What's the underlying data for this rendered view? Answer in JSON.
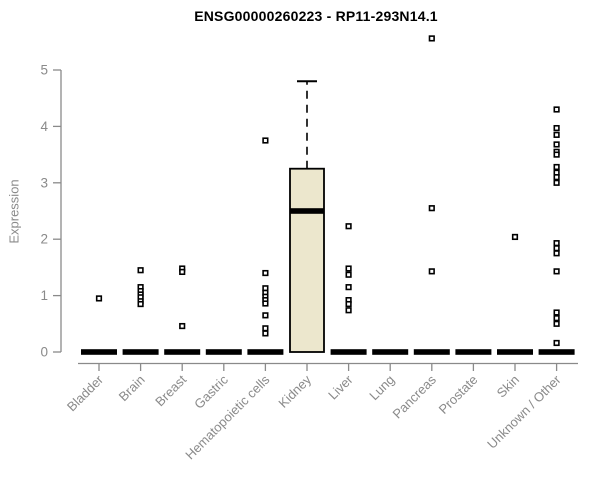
{
  "chart_data": {
    "type": "box",
    "title": "ENSG00000260223 - RP11-293N14.1",
    "xlabel": "",
    "ylabel": "Expression",
    "ylim": [
      0,
      5
    ],
    "yticks": [
      0,
      1,
      2,
      3,
      4,
      5
    ],
    "grid": false,
    "legend": "none",
    "box_fill_color": "#ece7cd",
    "box_stroke_color": "#000000",
    "axis_color": "#8a8a8a",
    "label_color": "#8a8a8a",
    "categories": [
      "Bladder",
      "Brain",
      "Breast",
      "Gastric",
      "Hematopoietic cells",
      "Kidney",
      "Liver",
      "Lung",
      "Pancreas",
      "Prostate",
      "Skin",
      "Unknown / Other"
    ],
    "boxes": [
      {
        "category": "Bladder",
        "whisker_low": 0,
        "q1": 0,
        "median": 0,
        "q3": 0,
        "whisker_high": 0,
        "outliers": [
          0.95
        ]
      },
      {
        "category": "Brain",
        "whisker_low": 0,
        "q1": 0,
        "median": 0,
        "q3": 0,
        "whisker_high": 0,
        "outliers": [
          1.45,
          1.15,
          1.08,
          1.02,
          0.97,
          0.9,
          0.85
        ]
      },
      {
        "category": "Breast",
        "whisker_low": 0,
        "q1": 0,
        "median": 0,
        "q3": 0,
        "whisker_high": 0,
        "outliers": [
          1.48,
          1.42,
          0.46
        ]
      },
      {
        "category": "Gastric",
        "whisker_low": 0,
        "q1": 0,
        "median": 0,
        "q3": 0,
        "whisker_high": 0,
        "outliers": []
      },
      {
        "category": "Hematopoietic cells",
        "whisker_low": 0,
        "q1": 0,
        "median": 0,
        "q3": 0,
        "whisker_high": 0,
        "outliers": [
          3.75,
          1.4,
          1.13,
          1.05,
          0.98,
          0.92,
          0.86,
          0.65,
          0.42,
          0.33
        ]
      },
      {
        "category": "Kidney",
        "whisker_low": 0,
        "q1": 0,
        "median": 2.5,
        "q3": 3.25,
        "whisker_high": 4.8,
        "outliers": []
      },
      {
        "category": "Liver",
        "whisker_low": 0,
        "q1": 0,
        "median": 0,
        "q3": 0,
        "whisker_high": 0,
        "outliers": [
          2.23,
          1.48,
          1.37,
          1.15,
          0.92,
          0.85,
          0.74
        ]
      },
      {
        "category": "Lung",
        "whisker_low": 0,
        "q1": 0,
        "median": 0,
        "q3": 0,
        "whisker_high": 0,
        "outliers": []
      },
      {
        "category": "Pancreas",
        "whisker_low": 0,
        "q1": 0,
        "median": 0,
        "q3": 0,
        "whisker_high": 0,
        "outliers": [
          5.56,
          2.55,
          1.43
        ]
      },
      {
        "category": "Prostate",
        "whisker_low": 0,
        "q1": 0,
        "median": 0,
        "q3": 0,
        "whisker_high": 0,
        "outliers": []
      },
      {
        "category": "Skin",
        "whisker_low": 0,
        "q1": 0,
        "median": 0,
        "q3": 0,
        "whisker_high": 0,
        "outliers": [
          2.04
        ]
      },
      {
        "category": "Unknown / Other",
        "whisker_low": 0,
        "q1": 0,
        "median": 0,
        "q3": 0,
        "whisker_high": 0,
        "outliers": [
          4.3,
          3.97,
          3.85,
          3.68,
          3.55,
          3.5,
          3.28,
          3.18,
          3.1,
          3.0,
          1.93,
          1.84,
          1.75,
          1.43,
          0.7,
          0.6,
          0.5,
          0.16
        ]
      }
    ]
  }
}
